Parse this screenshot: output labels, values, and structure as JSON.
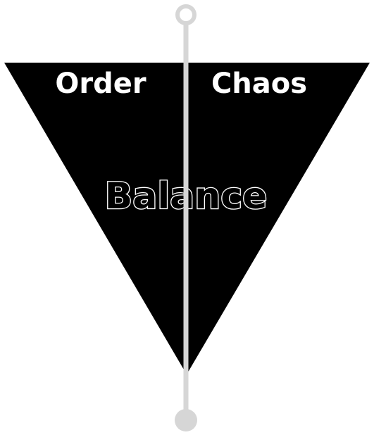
{
  "diagram": {
    "left_label": "Order",
    "right_label": "Chaos",
    "center_label": "Balance",
    "colors": {
      "triangle_fill": "#000000",
      "axis_line": "#d6d6d6",
      "top_marker_ring": "#d6d6d6",
      "bottom_marker_fill": "#d6d6d6",
      "label_text": "#ffffff"
    },
    "markers": {
      "top": "ring-marker",
      "bottom": "dot-marker"
    }
  }
}
